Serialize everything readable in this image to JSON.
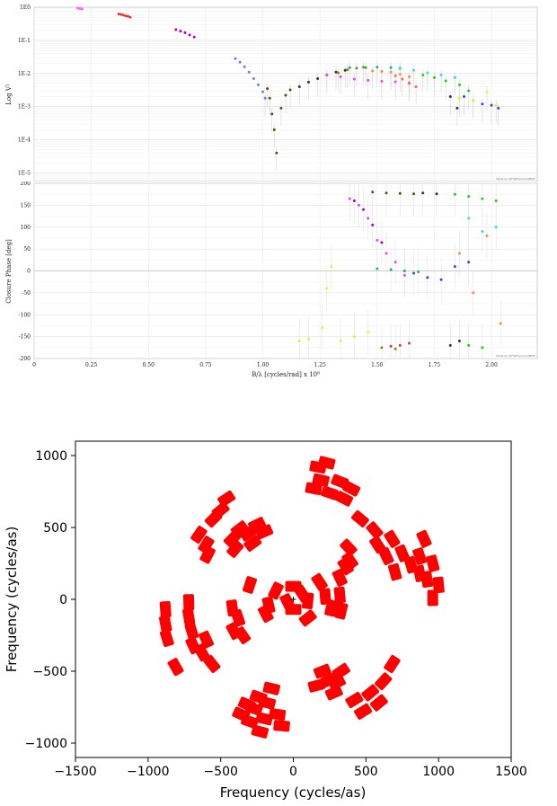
{
  "chart_data": [
    {
      "type": "scatter",
      "title": "",
      "xlabel": "B/λ [cycles/rad] x 10⁸",
      "ylabel": "Log V²",
      "yscale": "log",
      "xlim": [
        0,
        2.2
      ],
      "ylim": [
        5.5e-06,
        1
      ],
      "x_ticks": [
        0,
        0.25,
        0.5,
        0.75,
        1.0,
        1.25,
        1.5,
        1.75,
        2.0
      ],
      "x_tick_labels": [
        "0",
        "0.25",
        "0.50",
        "0.75",
        "1.00",
        "1.25",
        "1.50",
        "1.75",
        "2.00"
      ],
      "y_ticks": [
        1,
        0.1,
        0.01,
        0.001,
        0.0001,
        1e-05
      ],
      "y_tick_labels": [
        "1E0",
        "1E-1",
        "1E-2",
        "1E-3",
        "1E-4",
        "1E-5"
      ],
      "grid": true,
      "credit": "Made by OIFitsExplorer/JMMC",
      "series": [
        {
          "color": "#ff66ff",
          "points": [
            [
              0.19,
              0.94
            ],
            [
              0.2,
              0.92
            ],
            [
              0.2,
              0.9
            ],
            [
              0.21,
              0.88
            ]
          ]
        },
        {
          "color": "#ee3333",
          "points": [
            [
              0.37,
              0.62
            ],
            [
              0.38,
              0.6
            ],
            [
              0.39,
              0.58
            ],
            [
              0.4,
              0.55
            ],
            [
              0.41,
              0.53
            ],
            [
              0.42,
              0.5
            ]
          ]
        },
        {
          "color": "#aa00cc",
          "points": [
            [
              0.62,
              0.21
            ],
            [
              0.64,
              0.19
            ],
            [
              0.66,
              0.17
            ],
            [
              0.68,
              0.145
            ],
            [
              0.7,
              0.125
            ]
          ]
        },
        {
          "color": "#7777ee",
          "points": [
            [
              0.88,
              0.028
            ],
            [
              0.9,
              0.022
            ],
            [
              0.92,
              0.016
            ],
            [
              0.94,
              0.011
            ],
            [
              0.96,
              0.007
            ],
            [
              0.98,
              0.0045
            ],
            [
              1.0,
              0.0028
            ],
            [
              1.01,
              0.0018
            ]
          ]
        },
        {
          "color": "#774400",
          "points": [
            [
              1.02,
              0.0035
            ],
            [
              1.03,
              0.0018
            ],
            [
              1.04,
              0.0006
            ],
            [
              1.05,
              0.0002
            ],
            [
              1.06,
              4e-05
            ],
            [
              1.08,
              0.0009
            ],
            [
              1.1,
              0.0022
            ],
            [
              1.12,
              0.0032
            ]
          ]
        },
        {
          "color": "#333333",
          "points": [
            [
              1.16,
              0.004
            ],
            [
              1.2,
              0.0055
            ],
            [
              1.24,
              0.007
            ],
            [
              1.28,
              0.009
            ],
            [
              1.32,
              0.011
            ],
            [
              1.36,
              0.0125
            ],
            [
              1.82,
              0.002
            ],
            [
              1.85,
              0.0009
            ]
          ]
        },
        {
          "color": "#ee44ee",
          "points": [
            [
              1.28,
              0.009
            ],
            [
              1.34,
              0.008
            ],
            [
              1.4,
              0.0068
            ],
            [
              1.46,
              0.0062
            ],
            [
              1.52,
              0.0058
            ],
            [
              1.58,
              0.0056
            ],
            [
              1.64,
              0.0052
            ]
          ]
        },
        {
          "color": "#888800",
          "points": [
            [
              1.33,
              0.0105
            ],
            [
              1.37,
              0.013
            ],
            [
              1.41,
              0.0145
            ],
            [
              1.45,
              0.015
            ]
          ]
        },
        {
          "color": "#22aa88",
          "points": [
            [
              1.38,
              0.015
            ],
            [
              1.44,
              0.0155
            ],
            [
              1.5,
              0.0155
            ],
            [
              1.56,
              0.015
            ],
            [
              1.6,
              0.0145
            ]
          ]
        },
        {
          "color": "#ff8844",
          "points": [
            [
              1.48,
              0.012
            ],
            [
              1.52,
              0.0115
            ],
            [
              1.56,
              0.011
            ],
            [
              1.6,
              0.0095
            ],
            [
              1.64,
              0.008
            ]
          ]
        },
        {
          "color": "#ff6655",
          "points": [
            [
              1.58,
              0.0085
            ],
            [
              1.61,
              0.0068
            ],
            [
              1.64,
              0.005
            ],
            [
              1.67,
              0.004
            ]
          ]
        },
        {
          "color": "#33dddd",
          "points": [
            [
              1.6,
              0.014
            ],
            [
              1.66,
              0.0125
            ],
            [
              1.72,
              0.0105
            ],
            [
              1.78,
              0.009
            ],
            [
              1.84,
              0.0075
            ]
          ]
        },
        {
          "color": "#22cc22",
          "points": [
            [
              1.7,
              0.009
            ],
            [
              1.75,
              0.0075
            ],
            [
              1.8,
              0.006
            ],
            [
              1.86,
              0.0045
            ],
            [
              1.9,
              0.003
            ]
          ]
        },
        {
          "color": "#3344ee",
          "points": [
            [
              1.88,
              0.002
            ],
            [
              1.92,
              0.0015
            ],
            [
              1.96,
              0.0012
            ],
            [
              2.0,
              0.0011
            ],
            [
              2.03,
              0.0009
            ]
          ]
        },
        {
          "color": "#eeee33",
          "points": [
            [
              1.86,
              0.0018
            ],
            [
              1.92,
              0.0015
            ],
            [
              1.98,
              0.0028
            ],
            [
              2.02,
              0.0011
            ]
          ]
        }
      ]
    },
    {
      "type": "scatter",
      "title": "",
      "xlabel": "B/λ [cycles/rad] x 10⁸",
      "ylabel": "Closure Phase [deg]",
      "xlim": [
        0,
        2.2
      ],
      "ylim": [
        -200,
        200
      ],
      "x_ticks": [
        0,
        0.25,
        0.5,
        0.75,
        1.0,
        1.25,
        1.5,
        1.75,
        2.0
      ],
      "x_tick_labels": [
        "0",
        "0.25",
        "0.50",
        "0.75",
        "1.00",
        "1.25",
        "1.50",
        "1.75",
        "2.00"
      ],
      "y_ticks": [
        200,
        150,
        100,
        50,
        0,
        -50,
        -100,
        -150,
        -200
      ],
      "y_tick_labels": [
        "200",
        "150",
        "100",
        "50",
        "0",
        "-50",
        "-100",
        "-150",
        "-200"
      ],
      "grid": true,
      "credit": "Made by OIFitsExplorer/JMMC",
      "series": [
        {
          "color": "#eeee33",
          "points": [
            [
              1.16,
              -160
            ],
            [
              1.2,
              -155
            ],
            [
              1.26,
              -130
            ],
            [
              1.28,
              -40
            ],
            [
              1.3,
              10
            ],
            [
              1.34,
              -160
            ],
            [
              1.4,
              -150
            ],
            [
              1.46,
              -140
            ]
          ]
        },
        {
          "color": "#ee44ee",
          "points": [
            [
              1.38,
              165
            ],
            [
              1.42,
              150
            ],
            [
              1.46,
              120
            ],
            [
              1.5,
              70
            ],
            [
              1.54,
              40
            ],
            [
              1.58,
              20
            ],
            [
              1.62,
              -10
            ]
          ]
        },
        {
          "color": "#aa00cc",
          "points": [
            [
              1.4,
              160
            ],
            [
              1.44,
              140
            ],
            [
              1.48,
              105
            ],
            [
              1.52,
              65
            ]
          ]
        },
        {
          "color": "#774400",
          "points": [
            [
              1.48,
              180
            ],
            [
              1.54,
              178
            ],
            [
              1.6,
              177
            ],
            [
              1.66,
              176
            ]
          ]
        },
        {
          "color": "#333333",
          "points": [
            [
              1.7,
              178
            ],
            [
              1.76,
              176
            ],
            [
              1.82,
              -170
            ],
            [
              1.86,
              -160
            ]
          ]
        },
        {
          "color": "#22aa88",
          "points": [
            [
              1.5,
              5
            ],
            [
              1.56,
              3
            ],
            [
              1.62,
              0
            ],
            [
              1.68,
              -2
            ]
          ]
        },
        {
          "color": "#3344ee",
          "points": [
            [
              1.66,
              -5
            ],
            [
              1.72,
              -15
            ],
            [
              1.78,
              -20
            ],
            [
              1.84,
              10
            ],
            [
              1.9,
              20
            ]
          ]
        },
        {
          "color": "#22cc22",
          "points": [
            [
              1.84,
              175
            ],
            [
              1.9,
              170
            ],
            [
              1.96,
              165
            ],
            [
              2.02,
              160
            ],
            [
              1.9,
              -170
            ],
            [
              1.96,
              -175
            ]
          ]
        },
        {
          "color": "#ff8844",
          "points": [
            [
              1.86,
              40
            ],
            [
              1.92,
              -50
            ],
            [
              1.98,
              80
            ],
            [
              2.04,
              -120
            ]
          ]
        },
        {
          "color": "#ee3333",
          "points": [
            [
              1.56,
              -172
            ],
            [
              1.6,
              -170
            ],
            [
              1.64,
              -165
            ]
          ]
        },
        {
          "color": "#888800",
          "points": [
            [
              1.52,
              -175
            ],
            [
              1.58,
              -178
            ]
          ]
        },
        {
          "color": "#33dddd",
          "points": [
            [
              1.9,
              120
            ],
            [
              1.96,
              90
            ],
            [
              2.02,
              100
            ]
          ]
        }
      ]
    },
    {
      "type": "scatter",
      "title": "",
      "xlabel": "Frequency (cycles/as)",
      "ylabel": "Frequency (cycles/as)",
      "xlim": [
        -1500,
        1500
      ],
      "ylim": [
        -1100,
        1100
      ],
      "x_ticks": [
        -1500,
        -1000,
        -500,
        0,
        500,
        1000,
        1500
      ],
      "x_tick_labels": [
        "−1500",
        "−1000",
        "−500",
        "0",
        "500",
        "1000",
        "1500"
      ],
      "y_ticks": [
        1000,
        500,
        0,
        -500,
        -1000
      ],
      "y_tick_labels": [
        "1000",
        "500",
        "0",
        "−500",
        "−1000"
      ],
      "grid": false,
      "marker_color": "#ff0000",
      "center_marker": "+",
      "points": [
        [
          -880,
          -70
        ],
        [
          -880,
          -170
        ],
        [
          -870,
          -270
        ],
        [
          -720,
          -20
        ],
        [
          -720,
          -120
        ],
        [
          -700,
          -220
        ],
        [
          -810,
          -470
        ],
        [
          -690,
          -320
        ],
        [
          -630,
          -370
        ],
        [
          -560,
          -450
        ],
        [
          -600,
          -280
        ],
        [
          -380,
          -130
        ],
        [
          -410,
          -220
        ],
        [
          -420,
          -60
        ],
        [
          -350,
          -250
        ],
        [
          -650,
          450
        ],
        [
          -600,
          380
        ],
        [
          -590,
          310
        ],
        [
          -550,
          560
        ],
        [
          -500,
          620
        ],
        [
          -460,
          700
        ],
        [
          -420,
          420
        ],
        [
          -400,
          350
        ],
        [
          -370,
          490
        ],
        [
          -310,
          460
        ],
        [
          -280,
          390
        ],
        [
          -250,
          520
        ],
        [
          -200,
          470
        ],
        [
          -320,
          -730
        ],
        [
          -360,
          -800
        ],
        [
          -240,
          -680
        ],
        [
          -270,
          -760
        ],
        [
          -300,
          -850
        ],
        [
          -150,
          -620
        ],
        [
          -180,
          -720
        ],
        [
          -200,
          -830
        ],
        [
          -230,
          -920
        ],
        [
          -110,
          -800
        ],
        [
          -80,
          -880
        ],
        [
          -300,
          100
        ],
        [
          -190,
          -100
        ],
        [
          -170,
          -40
        ],
        [
          0,
          90
        ],
        [
          0,
          -70
        ],
        [
          100,
          -130
        ],
        [
          140,
          770
        ],
        [
          170,
          920
        ],
        [
          230,
          950
        ],
        [
          190,
          830
        ],
        [
          250,
          740
        ],
        [
          320,
          820
        ],
        [
          350,
          700
        ],
        [
          400,
          770
        ],
        [
          160,
          -600
        ],
        [
          200,
          -500
        ],
        [
          250,
          -560
        ],
        [
          280,
          -650
        ],
        [
          330,
          -500
        ],
        [
          300,
          -580
        ],
        [
          420,
          -700
        ],
        [
          480,
          -780
        ],
        [
          530,
          -650
        ],
        [
          590,
          -720
        ],
        [
          620,
          -570
        ],
        [
          680,
          -450
        ],
        [
          180,
          120
        ],
        [
          220,
          20
        ],
        [
          260,
          -60
        ],
        [
          320,
          150
        ],
        [
          320,
          30
        ],
        [
          330,
          -80
        ],
        [
          360,
          230
        ],
        [
          380,
          360
        ],
        [
          390,
          270
        ],
        [
          460,
          560
        ],
        [
          580,
          380
        ],
        [
          640,
          300
        ],
        [
          700,
          190
        ],
        [
          680,
          420
        ],
        [
          750,
          320
        ],
        [
          810,
          240
        ],
        [
          870,
          180
        ],
        [
          870,
          300
        ],
        [
          900,
          420
        ],
        [
          960,
          250
        ],
        [
          920,
          140
        ],
        [
          960,
          10
        ],
        [
          560,
          480
        ],
        [
          100,
          -10
        ],
        [
          60,
          40
        ],
        [
          -40,
          -20
        ],
        [
          -120,
          60
        ],
        [
          1000,
          100
        ]
      ]
    }
  ]
}
